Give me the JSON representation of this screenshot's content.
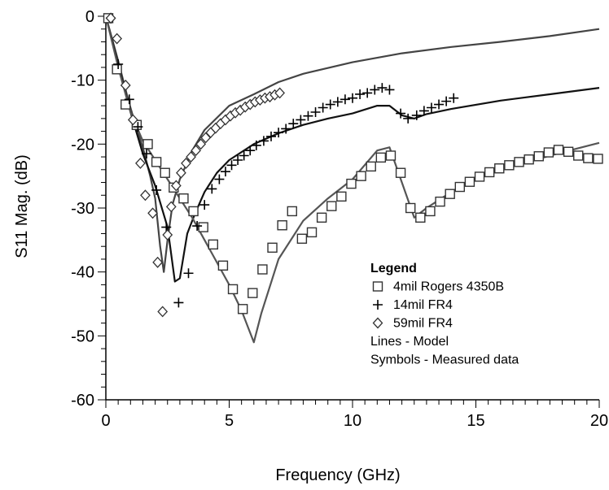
{
  "chart_data": {
    "type": "line",
    "xlabel": "Frequency (GHz)",
    "ylabel": "S11 Mag. (dB)",
    "xlim": [
      0,
      20
    ],
    "ylim": [
      -60,
      0
    ],
    "xticks": [
      0,
      5,
      10,
      15,
      20
    ],
    "yticks": [
      0,
      -10,
      -20,
      -30,
      -40,
      -50,
      -60
    ],
    "grid": false,
    "legend": {
      "title": "Legend",
      "placement": "lower-right",
      "entries": [
        {
          "symbol": "square",
          "label": "4mil Rogers 4350B"
        },
        {
          "symbol": "plus",
          "label": "14mil FR4"
        },
        {
          "symbol": "diamond",
          "label": "59mil FR4"
        }
      ],
      "notes": [
        "Lines - Model",
        "Symbols - Measured data"
      ]
    },
    "model_lines": [
      {
        "color": "#444444",
        "points": [
          [
            0,
            0
          ],
          [
            0.5,
            -7
          ],
          [
            0.9,
            -13
          ],
          [
            1.2,
            -17
          ],
          [
            1.5,
            -20.5
          ],
          [
            1.8,
            -25
          ],
          [
            2.0,
            -28.5
          ],
          [
            2.2,
            -36
          ],
          [
            2.35,
            -40
          ],
          [
            2.5,
            -35
          ],
          [
            2.7,
            -29.5
          ],
          [
            3.0,
            -25.5
          ],
          [
            3.5,
            -21
          ],
          [
            4.0,
            -17.8
          ],
          [
            5.0,
            -14
          ],
          [
            6.0,
            -12.2
          ],
          [
            7.0,
            -10.3
          ],
          [
            8.0,
            -9
          ],
          [
            10.0,
            -7.2
          ],
          [
            12.0,
            -5.8
          ],
          [
            14.0,
            -4.8
          ],
          [
            16.0,
            -4
          ],
          [
            18.0,
            -3.1
          ],
          [
            20.0,
            -2
          ]
        ]
      },
      {
        "color": "#111111",
        "points": [
          [
            0,
            0
          ],
          [
            0.5,
            -7.5
          ],
          [
            1.0,
            -15
          ],
          [
            1.5,
            -21.5
          ],
          [
            2.0,
            -26.5
          ],
          [
            2.5,
            -33
          ],
          [
            2.8,
            -41.5
          ],
          [
            3.0,
            -41
          ],
          [
            3.3,
            -34
          ],
          [
            3.6,
            -31
          ],
          [
            4.0,
            -27.5
          ],
          [
            4.5,
            -24.5
          ],
          [
            5.0,
            -22.5
          ],
          [
            6.0,
            -20
          ],
          [
            7.0,
            -18.3
          ],
          [
            8.0,
            -17
          ],
          [
            9.0,
            -16
          ],
          [
            10.0,
            -15.2
          ],
          [
            11.0,
            -14
          ],
          [
            11.5,
            -14
          ],
          [
            12.0,
            -15.5
          ],
          [
            12.5,
            -16
          ],
          [
            13.0,
            -15.3
          ],
          [
            14.0,
            -14.5
          ],
          [
            16.0,
            -13.2
          ],
          [
            18.0,
            -12.2
          ],
          [
            20.0,
            -11.2
          ]
        ]
      },
      {
        "color": "#555555",
        "points": [
          [
            0,
            0
          ],
          [
            0.5,
            -8
          ],
          [
            1.0,
            -15
          ],
          [
            1.5,
            -19.5
          ],
          [
            2.0,
            -22.5
          ],
          [
            2.5,
            -25.5
          ],
          [
            3.0,
            -28.5
          ],
          [
            3.5,
            -31.5
          ],
          [
            4.0,
            -35
          ],
          [
            4.5,
            -38.5
          ],
          [
            5.0,
            -42
          ],
          [
            5.5,
            -46
          ],
          [
            5.8,
            -49
          ],
          [
            6.0,
            -51
          ],
          [
            6.3,
            -46.5
          ],
          [
            7.0,
            -38
          ],
          [
            8.0,
            -32
          ],
          [
            9.0,
            -28.5
          ],
          [
            10.0,
            -25.5
          ],
          [
            11.0,
            -21
          ],
          [
            11.5,
            -20.5
          ],
          [
            12.0,
            -26
          ],
          [
            12.5,
            -31.5
          ],
          [
            13.0,
            -30
          ],
          [
            14.0,
            -27.5
          ],
          [
            15.0,
            -25.5
          ],
          [
            16.0,
            -24
          ],
          [
            17.0,
            -23
          ],
          [
            18.0,
            -21.8
          ],
          [
            19.0,
            -20.8
          ],
          [
            20.0,
            -19.8
          ]
        ]
      }
    ],
    "measured_series": [
      {
        "symbol": "square",
        "points": [
          [
            0.1,
            -0.3
          ],
          [
            0.45,
            -8.3
          ],
          [
            0.8,
            -13.8
          ],
          [
            1.25,
            -17
          ],
          [
            1.7,
            -20
          ],
          [
            2.05,
            -22.8
          ],
          [
            2.4,
            -24.5
          ],
          [
            2.75,
            -26.8
          ],
          [
            3.15,
            -28.5
          ],
          [
            3.55,
            -30.5
          ],
          [
            3.95,
            -33
          ],
          [
            4.35,
            -35.7
          ],
          [
            4.75,
            -39
          ],
          [
            5.15,
            -42.7
          ],
          [
            5.55,
            -45.8
          ],
          [
            5.95,
            -43.3
          ],
          [
            6.35,
            -39.6
          ],
          [
            6.75,
            -36.2
          ],
          [
            7.15,
            -32.7
          ],
          [
            7.55,
            -30.5
          ],
          [
            7.95,
            -34.8
          ],
          [
            8.35,
            -33.8
          ],
          [
            8.75,
            -31.5
          ],
          [
            9.15,
            -29.7
          ],
          [
            9.55,
            -28.2
          ],
          [
            9.95,
            -26.2
          ],
          [
            10.35,
            -25
          ],
          [
            10.75,
            -23.5
          ],
          [
            11.15,
            -22.1
          ],
          [
            11.55,
            -21.8
          ],
          [
            11.95,
            -24.5
          ],
          [
            12.35,
            -30
          ],
          [
            12.75,
            -31.5
          ],
          [
            13.15,
            -30.5
          ],
          [
            13.55,
            -29
          ],
          [
            13.95,
            -27.8
          ],
          [
            14.35,
            -26.7
          ],
          [
            14.75,
            -25.9
          ],
          [
            15.15,
            -25.1
          ],
          [
            15.55,
            -24.4
          ],
          [
            15.95,
            -23.8
          ],
          [
            16.35,
            -23.3
          ],
          [
            16.75,
            -22.8
          ],
          [
            17.15,
            -22.4
          ],
          [
            17.55,
            -21.9
          ],
          [
            17.95,
            -21.3
          ],
          [
            18.35,
            -20.9
          ],
          [
            18.75,
            -21.2
          ],
          [
            19.15,
            -21.8
          ],
          [
            19.55,
            -22.2
          ],
          [
            19.95,
            -22.3
          ]
        ]
      },
      {
        "symbol": "plus",
        "points": [
          [
            0.2,
            -0.3
          ],
          [
            0.5,
            -7.5
          ],
          [
            0.95,
            -13
          ],
          [
            1.3,
            -17.3
          ],
          [
            1.65,
            -21.5
          ],
          [
            2.05,
            -27.2
          ],
          [
            2.45,
            -33
          ],
          [
            2.95,
            -44.8
          ],
          [
            3.35,
            -40.2
          ],
          [
            3.7,
            -32.8
          ],
          [
            4.0,
            -29.5
          ],
          [
            4.3,
            -27
          ],
          [
            4.6,
            -25.5
          ],
          [
            4.85,
            -24.3
          ],
          [
            5.1,
            -23.3
          ],
          [
            5.35,
            -22.5
          ],
          [
            5.6,
            -21.8
          ],
          [
            5.85,
            -21
          ],
          [
            6.1,
            -20.2
          ],
          [
            6.4,
            -19.5
          ],
          [
            6.7,
            -18.8
          ],
          [
            7.0,
            -18.2
          ],
          [
            7.3,
            -17.6
          ],
          [
            7.6,
            -16.8
          ],
          [
            7.9,
            -16.2
          ],
          [
            8.2,
            -15.6
          ],
          [
            8.5,
            -15
          ],
          [
            8.8,
            -14.3
          ],
          [
            9.1,
            -13.8
          ],
          [
            9.4,
            -13.4
          ],
          [
            9.7,
            -13
          ],
          [
            10.0,
            -12.8
          ],
          [
            10.3,
            -12.2
          ],
          [
            10.6,
            -12
          ],
          [
            10.9,
            -11.5
          ],
          [
            11.2,
            -11.2
          ],
          [
            11.5,
            -11.5
          ],
          [
            11.95,
            -15.2
          ],
          [
            12.25,
            -16
          ],
          [
            12.6,
            -15.5
          ],
          [
            12.9,
            -14.8
          ],
          [
            13.2,
            -14.3
          ],
          [
            13.5,
            -13.8
          ],
          [
            13.8,
            -13.3
          ],
          [
            14.1,
            -12.8
          ]
        ]
      },
      {
        "symbol": "diamond",
        "points": [
          [
            0.2,
            -0.3
          ],
          [
            0.45,
            -3.5
          ],
          [
            0.8,
            -10.8
          ],
          [
            1.1,
            -16.2
          ],
          [
            1.4,
            -23
          ],
          [
            1.6,
            -28
          ],
          [
            1.9,
            -30.8
          ],
          [
            2.1,
            -38.5
          ],
          [
            2.3,
            -46.2
          ],
          [
            2.5,
            -34.2
          ],
          [
            2.65,
            -29.8
          ],
          [
            2.85,
            -26.5
          ],
          [
            3.05,
            -24.5
          ],
          [
            3.25,
            -23
          ],
          [
            3.45,
            -22
          ],
          [
            3.65,
            -21
          ],
          [
            3.85,
            -20
          ],
          [
            4.05,
            -19
          ],
          [
            4.25,
            -18.2
          ],
          [
            4.45,
            -17.5
          ],
          [
            4.65,
            -16.8
          ],
          [
            4.85,
            -16.2
          ],
          [
            5.05,
            -15.6
          ],
          [
            5.25,
            -15.1
          ],
          [
            5.45,
            -14.7
          ],
          [
            5.65,
            -14.2
          ],
          [
            5.85,
            -13.8
          ],
          [
            6.05,
            -13.4
          ],
          [
            6.25,
            -13.1
          ],
          [
            6.45,
            -12.8
          ],
          [
            6.65,
            -12.6
          ],
          [
            6.85,
            -12.3
          ],
          [
            7.05,
            -12
          ]
        ]
      }
    ]
  }
}
